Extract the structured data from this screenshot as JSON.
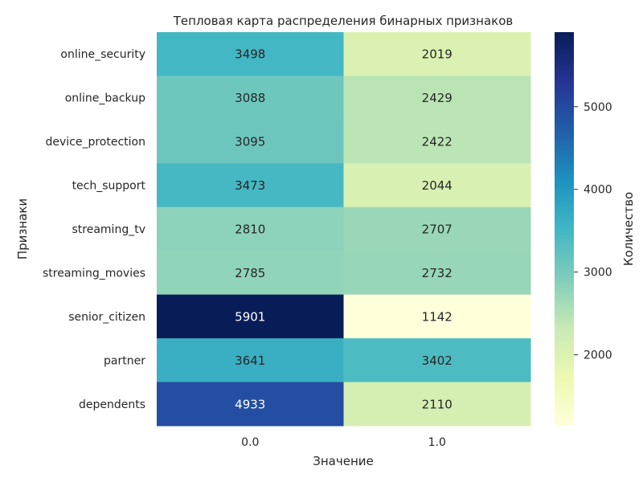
{
  "chart_data": {
    "type": "heatmap",
    "title": "Тепловая карта распределения бинарных признаков",
    "xlabel": "Значение",
    "ylabel": "Признаки",
    "colorbar_label": "Количество",
    "colormap": "YlGnBu",
    "x_categories": [
      "0.0",
      "1.0"
    ],
    "y_categories": [
      "online_security",
      "online_backup",
      "device_protection",
      "tech_support",
      "streaming_tv",
      "streaming_movies",
      "senior_citizen",
      "partner",
      "dependents"
    ],
    "values": [
      [
        3498,
        2019
      ],
      [
        3088,
        2429
      ],
      [
        3095,
        2422
      ],
      [
        3473,
        2044
      ],
      [
        2810,
        2707
      ],
      [
        2785,
        2732
      ],
      [
        5901,
        1142
      ],
      [
        3641,
        3402
      ],
      [
        4933,
        2110
      ]
    ],
    "value_range": [
      1142,
      5901
    ],
    "colorbar_ticks": [
      "2000",
      "3000",
      "4000",
      "5000"
    ],
    "colorbar_tick_values": [
      2000,
      3000,
      4000,
      5000
    ]
  }
}
